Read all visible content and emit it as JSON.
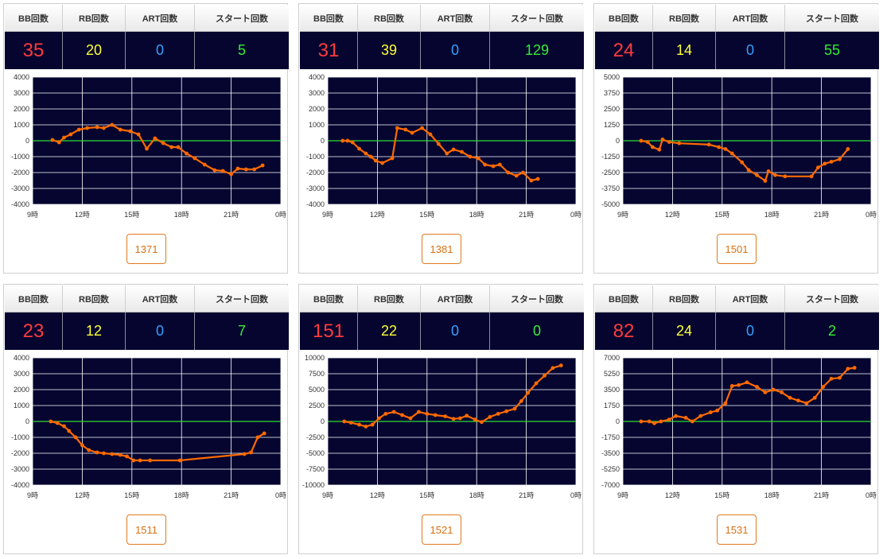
{
  "labels": {
    "bb": "BB回数",
    "rb": "RB回数",
    "art": "ART回数",
    "start": "スタート回数"
  },
  "colors": {
    "plot_bg": "#050530",
    "grid": "#ffffff",
    "zero_line": "#33dd33",
    "series": "#ff6a00",
    "bb_value": "#ff3b3b",
    "rb_value": "#ffff33",
    "art_value": "#33a0ff",
    "start_value": "#33ee33"
  },
  "machines": [
    {
      "id": "1371",
      "bb": "35",
      "rb": "20",
      "art": "0",
      "start": "5"
    },
    {
      "id": "1381",
      "bb": "31",
      "rb": "39",
      "art": "0",
      "start": "129"
    },
    {
      "id": "1501",
      "bb": "24",
      "rb": "14",
      "art": "0",
      "start": "55"
    },
    {
      "id": "1511",
      "bb": "23",
      "rb": "12",
      "art": "0",
      "start": "7"
    },
    {
      "id": "1521",
      "bb": "151",
      "rb": "22",
      "art": "0",
      "start": "0"
    },
    {
      "id": "1531",
      "bb": "82",
      "rb": "24",
      "art": "0",
      "start": "2"
    }
  ],
  "chart_data": [
    {
      "type": "line",
      "title": "1371",
      "xlim": [
        9,
        24
      ],
      "ylim": [
        -4000,
        4000
      ],
      "x_ticks": [
        "9時",
        "12時",
        "15時",
        "18時",
        "21時",
        "0時"
      ],
      "y_ticks": [
        "4000",
        "3000",
        "2000",
        "1000",
        "0",
        "-1000",
        "-2000",
        "-3000",
        "-4000"
      ],
      "grid": true,
      "series": [
        {
          "x": [
            10.2,
            10.6,
            10.9,
            11.3,
            11.8,
            12.3,
            12.9,
            13.3,
            13.8,
            14.3,
            14.9,
            15.4,
            15.9,
            16.4,
            16.9,
            17.4,
            17.8,
            18.3,
            18.8,
            19.4,
            20.0,
            20.5,
            21.0,
            21.4,
            21.9,
            22.4,
            22.9
          ],
          "y": [
            50,
            -100,
            200,
            400,
            700,
            800,
            850,
            800,
            1000,
            700,
            600,
            400,
            -500,
            150,
            -150,
            -400,
            -400,
            -800,
            -1100,
            -1500,
            -1850,
            -1900,
            -2100,
            -1750,
            -1800,
            -1800,
            -1550
          ]
        }
      ]
    },
    {
      "type": "line",
      "title": "1381",
      "xlim": [
        9,
        24
      ],
      "ylim": [
        -4000,
        4000
      ],
      "x_ticks": [
        "9時",
        "12時",
        "15時",
        "18時",
        "21時",
        "0時"
      ],
      "y_ticks": [
        "4000",
        "3000",
        "2000",
        "1000",
        "0",
        "-1000",
        "-2000",
        "-3000",
        "-4000"
      ],
      "grid": true,
      "series": [
        {
          "x": [
            9.9,
            10.2,
            10.5,
            10.9,
            11.3,
            11.6,
            11.9,
            12.3,
            12.9,
            13.2,
            13.7,
            14.1,
            14.7,
            15.2,
            15.7,
            16.2,
            16.6,
            17.1,
            17.6,
            18.1,
            18.5,
            19.0,
            19.4,
            19.9,
            20.4,
            20.8,
            21.3,
            21.7
          ],
          "y": [
            0,
            0,
            -100,
            -500,
            -800,
            -1000,
            -1250,
            -1400,
            -1100,
            800,
            700,
            500,
            800,
            400,
            -200,
            -800,
            -550,
            -700,
            -1000,
            -1100,
            -1500,
            -1600,
            -1500,
            -2000,
            -2200,
            -2000,
            -2500,
            -2400
          ]
        }
      ]
    },
    {
      "type": "line",
      "title": "1501",
      "xlim": [
        9,
        24
      ],
      "ylim": [
        -5000,
        5000
      ],
      "x_ticks": [
        "9時",
        "12時",
        "15時",
        "18時",
        "21時",
        "0時"
      ],
      "y_ticks": [
        "5000",
        "3750",
        "2500",
        "1250",
        "0",
        "-1250",
        "-2500",
        "-3750",
        "-5000"
      ],
      "grid": true,
      "series": [
        {
          "x": [
            10.1,
            10.5,
            10.8,
            11.2,
            11.4,
            11.8,
            12.4,
            14.2,
            14.8,
            15.2,
            15.6,
            16.2,
            16.6,
            17.1,
            17.6,
            17.8,
            18.2,
            18.8,
            20.4,
            20.8,
            21.2,
            21.6,
            22.1,
            22.6
          ],
          "y": [
            0,
            -100,
            -500,
            -700,
            100,
            -100,
            -200,
            -300,
            -500,
            -650,
            -1000,
            -1700,
            -2300,
            -2700,
            -3150,
            -2400,
            -2700,
            -2800,
            -2800,
            -2100,
            -1800,
            -1650,
            -1450,
            -650
          ]
        }
      ]
    },
    {
      "type": "line",
      "title": "1511",
      "xlim": [
        9,
        24
      ],
      "ylim": [
        -4000,
        4000
      ],
      "x_ticks": [
        "9時",
        "12時",
        "15時",
        "18時",
        "21時",
        "0時"
      ],
      "y_ticks": [
        "4000",
        "3000",
        "2000",
        "1000",
        "0",
        "-1000",
        "-2000",
        "-3000",
        "-4000"
      ],
      "grid": true,
      "series": [
        {
          "x": [
            10.1,
            10.5,
            10.9,
            11.2,
            11.6,
            12.0,
            12.4,
            12.9,
            13.3,
            13.8,
            14.3,
            14.7,
            15.1,
            15.5,
            16.1,
            17.9,
            21.8,
            22.2,
            22.6,
            23.0
          ],
          "y": [
            0,
            -100,
            -300,
            -600,
            -1000,
            -1500,
            -1800,
            -1950,
            -2000,
            -2050,
            -2100,
            -2200,
            -2450,
            -2450,
            -2450,
            -2450,
            -2050,
            -1950,
            -1000,
            -750
          ]
        }
      ]
    },
    {
      "type": "line",
      "title": "1521",
      "xlim": [
        9,
        24
      ],
      "ylim": [
        -10000,
        10000
      ],
      "x_ticks": [
        "9時",
        "12時",
        "15時",
        "18時",
        "21時",
        "0時"
      ],
      "y_ticks": [
        "10000",
        "7500",
        "5000",
        "2500",
        "0",
        "-2500",
        "-5000",
        "-7500",
        "-10000"
      ],
      "grid": true,
      "series": [
        {
          "x": [
            10.0,
            10.4,
            10.9,
            11.3,
            11.7,
            12.1,
            12.5,
            13.0,
            13.5,
            14.0,
            14.5,
            15.0,
            15.5,
            16.1,
            16.6,
            17.0,
            17.4,
            17.9,
            18.3,
            18.8,
            19.3,
            19.8,
            20.3,
            20.7,
            21.1,
            21.6,
            22.1,
            22.6,
            23.1
          ],
          "y": [
            0,
            -200,
            -500,
            -800,
            -500,
            500,
            1200,
            1500,
            1000,
            500,
            1500,
            1200,
            1000,
            800,
            400,
            500,
            900,
            300,
            -100,
            700,
            1200,
            1600,
            2000,
            3200,
            4500,
            6000,
            7200,
            8400,
            8800
          ]
        }
      ]
    },
    {
      "type": "line",
      "title": "1531",
      "xlim": [
        9,
        24
      ],
      "ylim": [
        -7000,
        7000
      ],
      "x_ticks": [
        "9時",
        "12時",
        "15時",
        "18時",
        "21時",
        "0時"
      ],
      "y_ticks": [
        "7000",
        "5250",
        "3500",
        "1750",
        "0",
        "-1750",
        "-3500",
        "-5250",
        "-7000"
      ],
      "grid": true,
      "series": [
        {
          "x": [
            10.1,
            10.6,
            10.9,
            11.3,
            11.8,
            12.2,
            12.8,
            13.2,
            13.7,
            14.3,
            14.7,
            15.2,
            15.6,
            16.0,
            16.5,
            17.1,
            17.6,
            18.1,
            18.6,
            19.1,
            19.6,
            20.1,
            20.6,
            21.1,
            21.6,
            22.1,
            22.6,
            23.0
          ],
          "y": [
            0,
            0,
            -200,
            0,
            200,
            600,
            400,
            0,
            600,
            1000,
            1200,
            2000,
            3900,
            4000,
            4300,
            3800,
            3200,
            3500,
            3200,
            2600,
            2300,
            2000,
            2600,
            3800,
            4700,
            4800,
            5800,
            5900
          ]
        }
      ]
    }
  ]
}
